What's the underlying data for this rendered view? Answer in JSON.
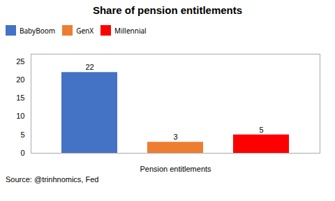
{
  "chart_data": {
    "type": "bar",
    "title": "Share of pension entitlements",
    "categories": [
      "BabyBoom",
      "GenX",
      "Millennial"
    ],
    "values": [
      22,
      3,
      5
    ],
    "colors": [
      "#4472C4",
      "#ED7D31",
      "#FF0000"
    ],
    "xlabel": "Pension entitlements",
    "ylim": [
      0,
      27
    ],
    "yticks": [
      0,
      5,
      10,
      15,
      20,
      25
    ],
    "grid": false,
    "legend": "top",
    "data_labels": true,
    "tick_labels": "y",
    "caption": "Source: @trinhnomics, Fed"
  }
}
